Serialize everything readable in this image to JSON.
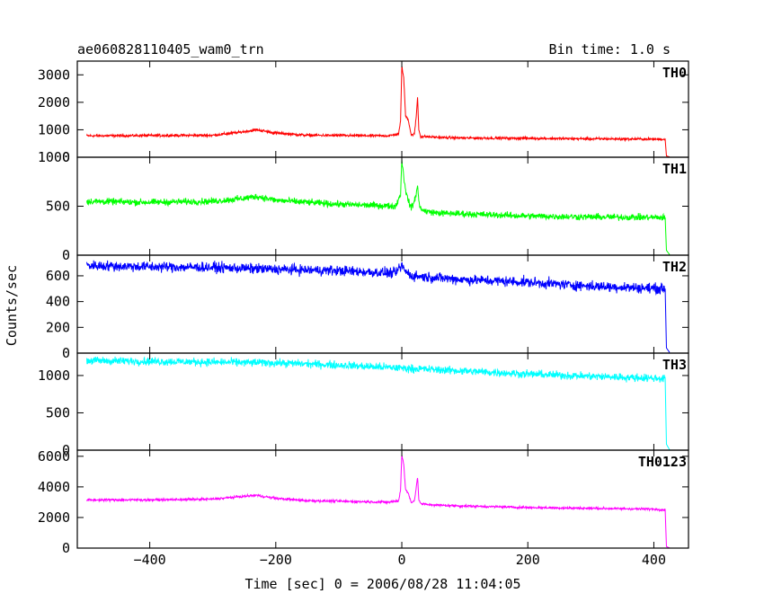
{
  "header": {
    "left": "ae060828110405_wam0_trn",
    "right": "Bin time: 1.0 s"
  },
  "chart_data": {
    "type": "line",
    "xlabel": "Time [sec] 0 = 2006/08/28 11:04:05",
    "ylabel": "Counts/sec",
    "xlim": [
      -515,
      455
    ],
    "x_ticks": [
      -400,
      -200,
      0,
      200,
      400
    ],
    "x_tick_labels": [
      "−400",
      "−200",
      "0",
      "200",
      "400"
    ],
    "x_end": 425,
    "panels": [
      {
        "name": "TH0",
        "color": "#ff0000",
        "ylim": [
          0,
          3500
        ],
        "yticks": [
          0,
          1000,
          2000,
          3000
        ],
        "ytick_labels": [
          "0",
          "1000",
          "2000",
          "3000"
        ],
        "noise": 35,
        "x": [
          -500,
          -400,
          -300,
          -260,
          -230,
          -200,
          -150,
          -20,
          -5,
          -2,
          0,
          3,
          6,
          10,
          15,
          20,
          23,
          25,
          27,
          30,
          40,
          60,
          100,
          200,
          300,
          400,
          418,
          420,
          425
        ],
        "y": [
          780,
          790,
          800,
          900,
          1000,
          880,
          800,
          780,
          850,
          1300,
          3300,
          2900,
          1500,
          1400,
          800,
          850,
          1500,
          2200,
          1000,
          750,
          750,
          720,
          700,
          690,
          670,
          660,
          650,
          50,
          10
        ]
      },
      {
        "name": "TH1",
        "color": "#00ff00",
        "ylim": [
          0,
          1000
        ],
        "yticks": [
          0,
          500,
          1000
        ],
        "ytick_labels": [
          "0",
          "500",
          "1000"
        ],
        "noise": 25,
        "x": [
          -500,
          -400,
          -300,
          -250,
          -230,
          -200,
          -100,
          -10,
          -2,
          0,
          3,
          8,
          15,
          20,
          25,
          28,
          35,
          60,
          200,
          300,
          418,
          420,
          425
        ],
        "y": [
          550,
          540,
          550,
          580,
          600,
          560,
          520,
          500,
          620,
          980,
          800,
          600,
          480,
          550,
          700,
          500,
          450,
          430,
          400,
          390,
          385,
          50,
          5
        ]
      },
      {
        "name": "TH2",
        "color": "#0000ff",
        "ylim": [
          0,
          760
        ],
        "yticks": [
          0,
          200,
          400,
          600
        ],
        "ytick_labels": [
          "0",
          "200",
          "400",
          "600"
        ],
        "noise": 30,
        "x": [
          -500,
          -400,
          -300,
          -200,
          -100,
          -10,
          0,
          5,
          15,
          100,
          200,
          300,
          418,
          420,
          425
        ],
        "y": [
          680,
          670,
          665,
          650,
          640,
          620,
          680,
          640,
          600,
          570,
          550,
          520,
          500,
          40,
          5
        ]
      },
      {
        "name": "TH3",
        "color": "#00ffff",
        "ylim": [
          0,
          1300
        ],
        "yticks": [
          0,
          500,
          1000
        ],
        "ytick_labels": [
          "0",
          "500",
          "1000"
        ],
        "noise": 40,
        "x": [
          -500,
          -400,
          -300,
          -200,
          -100,
          0,
          100,
          200,
          300,
          418,
          420,
          425
        ],
        "y": [
          1200,
          1190,
          1180,
          1170,
          1140,
          1100,
          1060,
          1020,
          990,
          960,
          80,
          5
        ]
      },
      {
        "name": "TH0123",
        "color": "#ff00ff",
        "ylim": [
          0,
          6400
        ],
        "yticks": [
          0,
          2000,
          4000,
          6000
        ],
        "ytick_labels": [
          "0",
          "2000",
          "4000",
          "6000"
        ],
        "noise": 60,
        "x": [
          -500,
          -400,
          -300,
          -260,
          -230,
          -200,
          -150,
          -20,
          -5,
          -2,
          0,
          3,
          6,
          10,
          15,
          20,
          23,
          25,
          27,
          30,
          40,
          60,
          100,
          200,
          300,
          400,
          418,
          420,
          425
        ],
        "y": [
          3150,
          3150,
          3200,
          3350,
          3450,
          3250,
          3100,
          3000,
          3100,
          3800,
          6100,
          5500,
          3800,
          3600,
          3000,
          3100,
          4000,
          4600,
          3200,
          2900,
          2850,
          2800,
          2750,
          2650,
          2600,
          2550,
          2500,
          100,
          10
        ]
      }
    ]
  }
}
